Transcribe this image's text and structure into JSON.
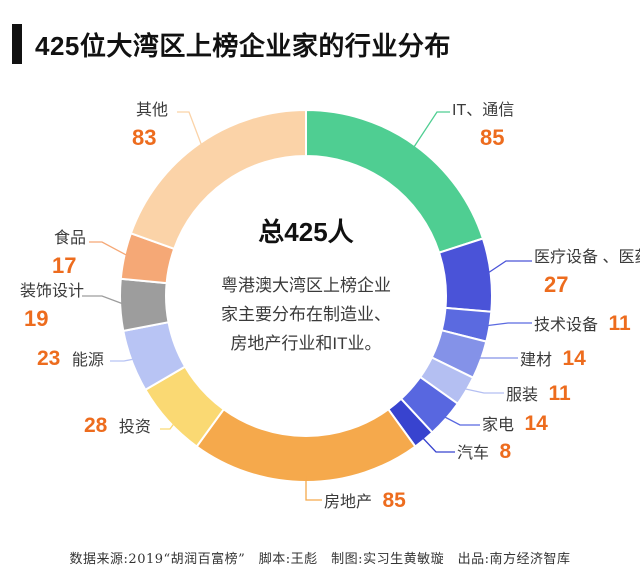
{
  "header": {
    "title": "425位大湾区上榜企业家的行业分布"
  },
  "chart_data": {
    "type": "pie",
    "subtype": "donut",
    "title": "425位大湾区上榜企业家的行业分布",
    "center_title": "总425人",
    "center_note": "粤港澳大湾区上榜企业\n家主要分布在制造业、\n房地产行业和IT业。",
    "total": 425,
    "unit": "人",
    "start_angle_deg": 0,
    "direction": "clockwise",
    "legend_position": "around-labels-with-leader-lines",
    "number_color": "#ED6C1E",
    "label_color": "#3B3B3B",
    "segments": [
      {
        "label": "IT、通信",
        "value": 85,
        "color": "#4FCE92"
      },
      {
        "label": "医疗设备 、医药",
        "value": 27,
        "color": "#4A53D8"
      },
      {
        "label": "技术设备",
        "value": 11,
        "color": "#5B6AE0"
      },
      {
        "label": "建材",
        "value": 14,
        "color": "#8492E8"
      },
      {
        "label": "服装",
        "value": 11,
        "color": "#B4BFF2"
      },
      {
        "label": "家电",
        "value": 14,
        "color": "#5867E0"
      },
      {
        "label": "汽车",
        "value": 8,
        "color": "#3843CF"
      },
      {
        "label": "房地产",
        "value": 85,
        "color": "#F5A94C"
      },
      {
        "label": "投资",
        "value": 28,
        "color": "#FAD973"
      },
      {
        "label": "能源",
        "value": 23,
        "color": "#B8C4F4"
      },
      {
        "label": "装饰设计",
        "value": 19,
        "color": "#9D9D9D"
      },
      {
        "label": "食品",
        "value": 17,
        "color": "#F5A876"
      },
      {
        "label": "其他",
        "value": 83,
        "color": "#FBD3A8"
      }
    ]
  },
  "footer": {
    "credits": "数据来源:2019“胡润百富榜”　脚本:王彪　制图:实习生黄敏璇　出品:南方经济智库"
  }
}
